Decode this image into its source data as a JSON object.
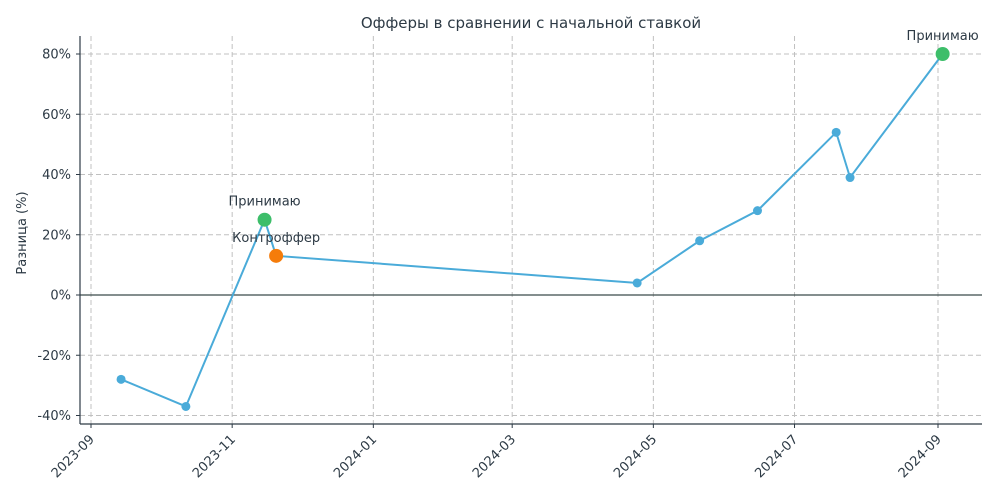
{
  "chart_data": {
    "type": "line",
    "title": "Офферы в сравнении с начальной ставкой",
    "xlabel": "",
    "ylabel": "Разница (%)",
    "ylim": [
      -43,
      86
    ],
    "yticks": [
      -40,
      -20,
      0,
      20,
      40,
      60,
      80
    ],
    "ytick_labels": [
      "-40%",
      "-20%",
      "0%",
      "20%",
      "40%",
      "60%",
      "80%"
    ],
    "xlim": [
      "2023-08-27",
      "2024-09-21"
    ],
    "xticks": [
      "2023-09-01",
      "2023-11-01",
      "2024-01-01",
      "2024-03-01",
      "2024-05-01",
      "2024-07-01",
      "2024-09-01"
    ],
    "xtick_labels": [
      "2023-09",
      "2023-11",
      "2024-01",
      "2024-03",
      "2024-05",
      "2024-07",
      "2024-09"
    ],
    "grid": true,
    "zero_line": true,
    "series": [
      {
        "name": "Разница",
        "color": "#4aabd9",
        "x": [
          "2023-09-14",
          "2023-10-12",
          "2023-11-15",
          "2023-11-20",
          "2024-04-24",
          "2024-05-21",
          "2024-06-15",
          "2024-07-19",
          "2024-07-25",
          "2024-09-03"
        ],
        "values": [
          -28,
          -37,
          25,
          13,
          4,
          18,
          28,
          54,
          39,
          80
        ]
      }
    ],
    "highlights": [
      {
        "x": "2023-11-15",
        "value": 25,
        "label": "Принимаю",
        "color": "#3dbe6a"
      },
      {
        "x": "2023-11-20",
        "value": 13,
        "label": "Контроффер",
        "color": "#f57c0a"
      },
      {
        "x": "2024-09-03",
        "value": 80,
        "label": "Принимаю",
        "color": "#3dbe6a"
      }
    ]
  },
  "colors": {
    "line": "#4aabd9",
    "accept": "#3dbe6a",
    "counter": "#f57c0a",
    "text": "#2d3a45",
    "grid": "#c0c0c0",
    "axis": "#2d3a45"
  }
}
